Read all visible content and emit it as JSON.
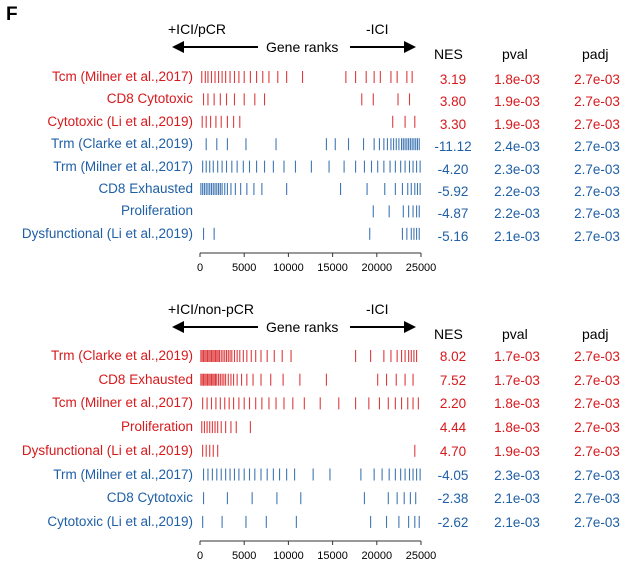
{
  "panel_letter": "F",
  "colors": {
    "up": "#d7191c",
    "down": "#1f5fa6",
    "axis": "#333333"
  },
  "column_headers": {
    "nes": "NES",
    "pval": "pval",
    "padj": "padj"
  },
  "chart_data": [
    {
      "type": "barcode",
      "left_label": "+ICI/pCR",
      "right_label": "-ICI",
      "xlabel": "Gene ranks",
      "xlim": [
        0,
        25000
      ],
      "xticks": [
        0,
        5000,
        10000,
        15000,
        20000,
        25000
      ],
      "rows": [
        {
          "name": "Tcm (Milner et al.,2017)",
          "direction": "up",
          "nes": "3.19",
          "pval": "1.8e-03",
          "padj": "2.7e-03",
          "ranks": [
            200,
            600,
            900,
            1300,
            1700,
            2100,
            2500,
            2900,
            3400,
            3900,
            4400,
            5000,
            5700,
            6400,
            7100,
            7800,
            8800,
            9800,
            11600,
            16500,
            17600,
            18800,
            19700,
            20400,
            21600,
            22300,
            23400,
            24000
          ]
        },
        {
          "name": "CD8 Cytotoxic",
          "direction": "up",
          "nes": "3.80",
          "pval": "1.9e-03",
          "padj": "2.7e-03",
          "ranks": [
            400,
            900,
            1600,
            2300,
            3000,
            3900,
            5000,
            6200,
            7300,
            18300,
            19600,
            22400,
            23700
          ]
        },
        {
          "name": "Cytotoxic (Li et al.,2019)",
          "direction": "up",
          "nes": "3.30",
          "pval": "1.9e-03",
          "padj": "2.7e-03",
          "ranks": [
            250,
            700,
            1200,
            1800,
            2400,
            3100,
            3800,
            4500,
            21800,
            23200,
            24300
          ]
        },
        {
          "name": "Trm (Clarke et al.,2019)",
          "direction": "down",
          "nes": "-11.12",
          "pval": "2.4e-03",
          "padj": "2.7e-03",
          "ranks": [
            700,
            1900,
            3100,
            5200,
            8600,
            14300,
            15300,
            16800,
            18500,
            19700,
            20300,
            20800,
            21200,
            21600,
            21900,
            22200,
            22500,
            22800,
            23000,
            23200,
            23400,
            23600,
            23800,
            24000,
            24200,
            24400,
            24600,
            24800
          ]
        },
        {
          "name": "Trm (Milner et al.,2017)",
          "direction": "down",
          "nes": "-4.20",
          "pval": "2.3e-03",
          "padj": "2.7e-03",
          "ranks": [
            300,
            700,
            1100,
            1500,
            2000,
            2500,
            3000,
            3600,
            4200,
            4900,
            5600,
            6400,
            7300,
            8300,
            9500,
            10800,
            12600,
            14600,
            16300,
            17600,
            18600,
            19400,
            20100,
            20800,
            21500,
            22100,
            22700,
            23200,
            23700,
            24100,
            24500,
            24900
          ]
        },
        {
          "name": "CD8 Exhausted",
          "direction": "down",
          "nes": "-5.92",
          "pval": "2.2e-03",
          "padj": "2.7e-03",
          "ranks": [
            100,
            300,
            500,
            700,
            900,
            1100,
            1300,
            1500,
            1700,
            1900,
            2100,
            2300,
            2500,
            2800,
            3100,
            3500,
            4000,
            4600,
            5300,
            6100,
            7000,
            9800,
            15900,
            18900,
            20900,
            22100,
            22900,
            23500,
            23900,
            24300,
            24600,
            24900
          ]
        },
        {
          "name": "Proliferation",
          "direction": "down",
          "nes": "-4.87",
          "pval": "2.2e-03",
          "padj": "2.7e-03",
          "ranks": [
            19600,
            21400,
            23000,
            23600,
            24100,
            24500,
            24800
          ]
        },
        {
          "name": "Dysfunctional (Li et al.,2019)",
          "direction": "down",
          "nes": "-5.16",
          "pval": "2.1e-03",
          "padj": "2.7e-03",
          "ranks": [
            400,
            1600,
            19200,
            22900,
            23400,
            23900,
            24200,
            24500,
            24800
          ]
        }
      ]
    },
    {
      "type": "barcode",
      "left_label": "+ICI/non-pCR",
      "right_label": "-ICI",
      "xlabel": "Gene ranks",
      "xlim": [
        0,
        25000
      ],
      "xticks": [
        0,
        5000,
        10000,
        15000,
        20000,
        25000
      ],
      "rows": [
        {
          "name": "Trm (Clarke et al.,2019)",
          "direction": "up",
          "nes": "8.02",
          "pval": "1.7e-03",
          "padj": "2.7e-03",
          "ranks": [
            100,
            250,
            400,
            550,
            700,
            850,
            1000,
            1150,
            1300,
            1450,
            1600,
            1750,
            1900,
            2050,
            2200,
            2400,
            2600,
            2800,
            3000,
            3200,
            3400,
            3600,
            3900,
            4200,
            4500,
            4900,
            5300,
            5800,
            6300,
            6900,
            7600,
            8400,
            9300,
            10300,
            17600,
            19300,
            20800,
            21600,
            22300,
            22800,
            23200,
            23600,
            23900,
            24200,
            24500
          ]
        },
        {
          "name": "CD8 Exhausted",
          "direction": "up",
          "nes": "7.52",
          "pval": "1.7e-03",
          "padj": "2.7e-03",
          "ranks": [
            100,
            250,
            400,
            550,
            700,
            850,
            1000,
            1150,
            1300,
            1450,
            1600,
            1750,
            1900,
            2100,
            2300,
            2500,
            2700,
            2900,
            3200,
            3500,
            3800,
            4200,
            4700,
            5300,
            6000,
            6900,
            8000,
            9400,
            11300,
            14300,
            20100,
            21100,
            22200,
            23200,
            24100
          ]
        },
        {
          "name": "Tcm (Milner et al.,2017)",
          "direction": "up",
          "nes": "2.20",
          "pval": "1.8e-03",
          "padj": "2.7e-03",
          "ranks": [
            300,
            800,
            1300,
            1800,
            2300,
            2800,
            3300,
            3800,
            4400,
            5000,
            5600,
            6300,
            7000,
            7800,
            8600,
            9500,
            10500,
            11800,
            13600,
            15700,
            17600,
            19100,
            20300,
            21300,
            22100,
            22800,
            23500,
            24100,
            24700
          ]
        },
        {
          "name": "Proliferation",
          "direction": "up",
          "nes": "4.44",
          "pval": "1.8e-03",
          "padj": "2.7e-03",
          "ranks": [
            200,
            500,
            800,
            1100,
            1400,
            1700,
            2000,
            2400,
            2900,
            3500,
            4100,
            5700
          ]
        },
        {
          "name": "Dysfunctional (Li et al.,2019)",
          "direction": "up",
          "nes": "4.70",
          "pval": "1.9e-03",
          "padj": "2.7e-03",
          "ranks": [
            300,
            700,
            1100,
            1500,
            2000,
            24300
          ]
        },
        {
          "name": "Trm (Milner et al.,2017)",
          "direction": "down",
          "nes": "-4.05",
          "pval": "2.3e-03",
          "padj": "2.7e-03",
          "ranks": [
            400,
            900,
            1400,
            1900,
            2400,
            2900,
            3400,
            3900,
            4400,
            5000,
            5600,
            6200,
            6900,
            7600,
            8300,
            9000,
            9800,
            10700,
            12800,
            14700,
            18200,
            19700,
            20600,
            21400,
            22100,
            22700,
            23200,
            23700,
            24100,
            24500,
            24900
          ]
        },
        {
          "name": "CD8 Cytotoxic",
          "direction": "down",
          "nes": "-2.38",
          "pval": "2.1e-03",
          "padj": "2.7e-03",
          "ranks": [
            400,
            3100,
            5900,
            8700,
            11400,
            18600,
            21300,
            22300,
            23100,
            23800,
            24400
          ]
        },
        {
          "name": "Cytotoxic (Li et al.,2019)",
          "direction": "down",
          "nes": "-2.62",
          "pval": "2.1e-03",
          "padj": "2.7e-03",
          "ranks": [
            300,
            2500,
            5200,
            7500,
            10900,
            19300,
            21100,
            22500,
            23600,
            24300,
            24800
          ]
        }
      ]
    }
  ]
}
